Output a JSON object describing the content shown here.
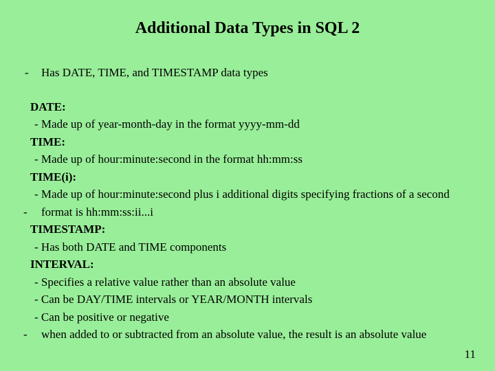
{
  "background_color": "#99ee99",
  "text_color": "#000000",
  "font_family": "Times New Roman",
  "title": "Additional Data Types in SQL 2",
  "title_fontsize": 24,
  "body_fontsize": 17,
  "bullet1": {
    "dash": "-",
    "text": "Has DATE, TIME, and TIMESTAMP data types"
  },
  "date": {
    "header": "DATE:",
    "line1": " - Made up of year-month-day in the format yyyy-mm-dd"
  },
  "time": {
    "header": "TIME:",
    "line1": " - Made up of hour:minute:second in the format hh:mm:ss"
  },
  "timei": {
    "header": "TIME(i):",
    "line1": " - Made up of hour:minute:second plus i additional digits specifying fractions of a second",
    "dash": "-",
    "line2": "format is hh:mm:ss:ii...i"
  },
  "timestamp": {
    "header": "TIMESTAMP:",
    "line1": " - Has both DATE and TIME components"
  },
  "interval": {
    "header": "INTERVAL:",
    "line1": " - Specifies a relative value rather than an absolute value",
    "line2": " - Can be DAY/TIME intervals or YEAR/MONTH intervals",
    "line3": " - Can be positive or negative",
    "dash": "-",
    "line4": "when added to or subtracted from an absolute value, the result is an absolute value"
  },
  "page_number": "11"
}
